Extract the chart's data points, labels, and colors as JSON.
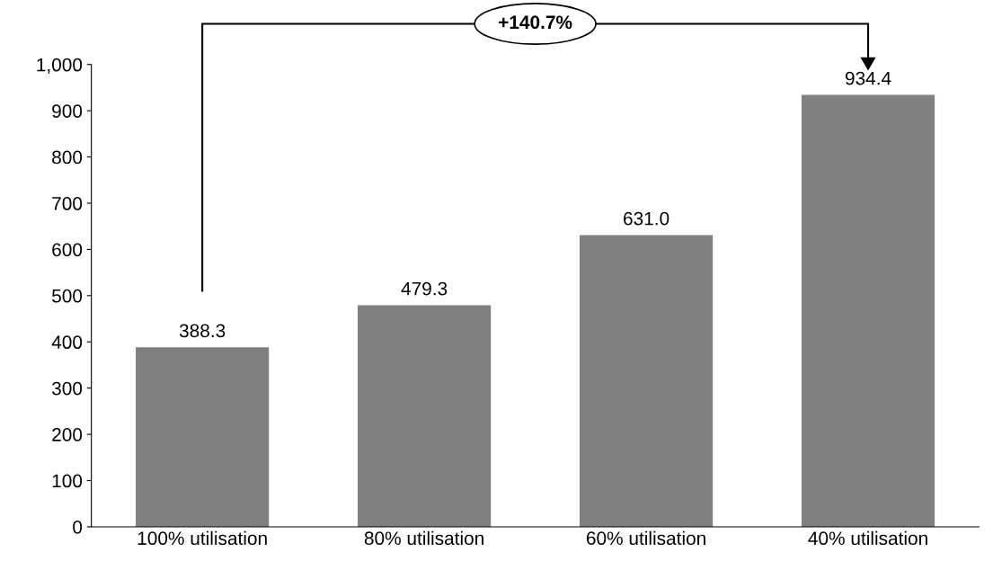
{
  "chart_data": {
    "type": "bar",
    "categories": [
      "100% utilisation",
      "80% utilisation",
      "60% utilisation",
      "40% utilisation"
    ],
    "values": [
      388.3,
      479.3,
      631.0,
      934.4
    ],
    "value_labels": [
      "388.3",
      "479.3",
      "631.0",
      "934.4"
    ],
    "color": "#808080",
    "ylim": [
      0,
      1000
    ],
    "yticks": [
      0,
      100,
      200,
      300,
      400,
      500,
      600,
      700,
      800,
      900,
      {
        "value": 1000,
        "label": "1,000"
      }
    ],
    "grid": false,
    "annotations": [
      "+140.7%"
    ]
  }
}
